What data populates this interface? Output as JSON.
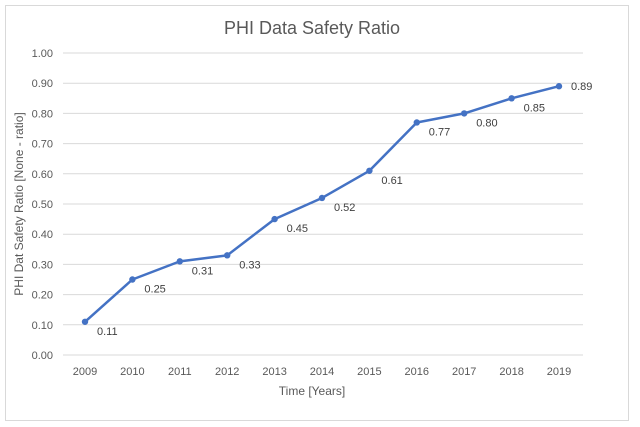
{
  "chart_data": {
    "type": "line",
    "title": "PHI Data Safety Ratio",
    "xlabel": "Time [Years]",
    "ylabel": "PHI Dat Safety Ratio [None - ratio]",
    "categories": [
      "2009",
      "2010",
      "2011",
      "2012",
      "2013",
      "2014",
      "2015",
      "2016",
      "2017",
      "2018",
      "2019"
    ],
    "series": [
      {
        "name": "PHI Data Safety Ratio",
        "values": [
          0.11,
          0.25,
          0.31,
          0.33,
          0.45,
          0.52,
          0.61,
          0.77,
          0.8,
          0.85,
          0.89
        ],
        "labels": [
          "0.11",
          "0.25",
          "0.31",
          "0.33",
          "0.45",
          "0.52",
          "0.61",
          "0.77",
          "0.80",
          "0.85",
          "0.89"
        ],
        "color": "#4472c4"
      }
    ],
    "ylim": [
      0,
      1
    ],
    "yticks": [
      "0.00",
      "0.10",
      "0.20",
      "0.30",
      "0.40",
      "0.50",
      "0.60",
      "0.70",
      "0.80",
      "0.90",
      "1.00"
    ],
    "grid": true,
    "legend": "none"
  }
}
